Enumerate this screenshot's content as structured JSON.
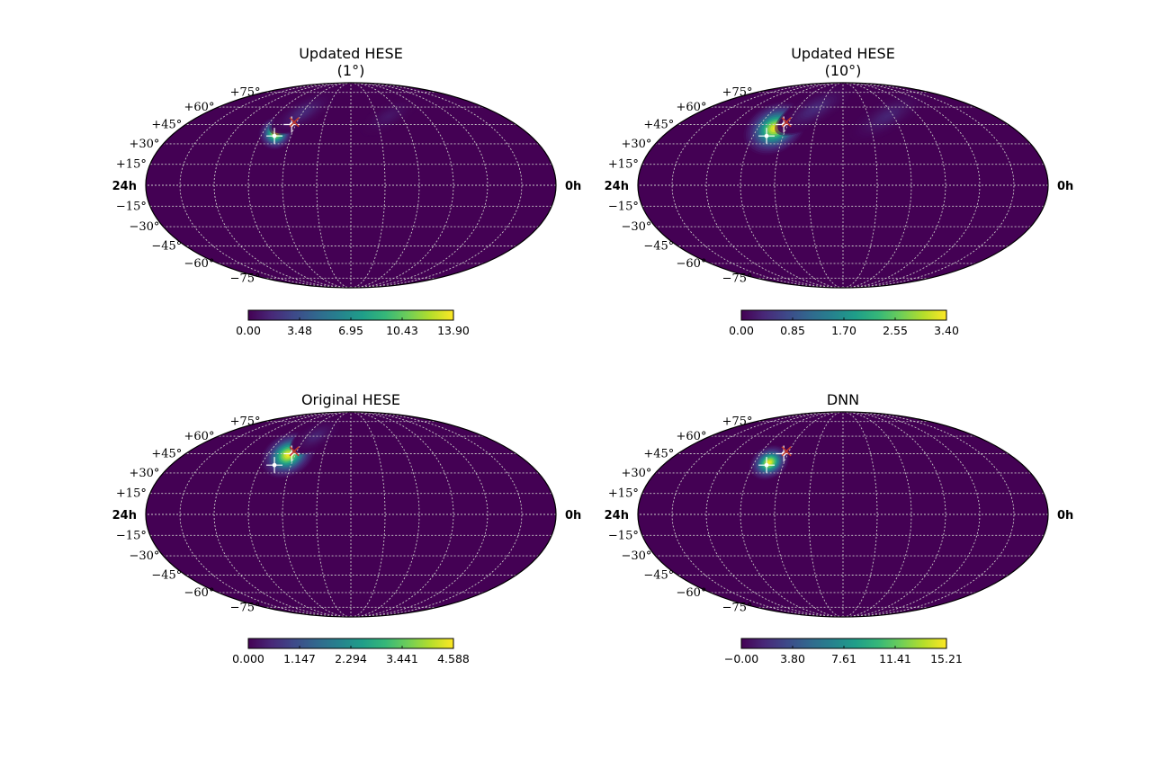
{
  "figure": {
    "colormap": "viridis",
    "background": "#ffffff",
    "grid_color": "#c8c8c8",
    "ra_labels": {
      "left": "24h",
      "right": "0h"
    },
    "lat_labels": [
      "+75°",
      "+60°",
      "+45°",
      "+30°",
      "+15°",
      "−15°",
      "−30°",
      "−45°",
      "−60°",
      "−75°"
    ]
  },
  "chart_data": [
    {
      "type": "heatmap",
      "projection": "mollweide",
      "title_lines": [
        "Updated HESE",
        "(1°)"
      ],
      "colorbar": {
        "min": 0.0,
        "max": 13.9,
        "ticks": [
          "0.00",
          "3.48",
          "6.95",
          "10.43",
          "13.90"
        ]
      },
      "blobs": [
        {
          "ra_h": 17.1,
          "dec": 38,
          "sigma_ra_h": 0.45,
          "sigma_dec": 5.0,
          "amp": 1.0
        },
        {
          "ra_h": 16.0,
          "dec": 55,
          "sigma_ra_h": 1.2,
          "sigma_dec": 5.0,
          "amp": 0.12
        },
        {
          "ra_h": 9.0,
          "dec": 52,
          "sigma_ra_h": 1.0,
          "sigma_dec": 5.0,
          "amp": 0.06
        }
      ],
      "markers": [
        {
          "ra_h": 17.1,
          "dec": 36,
          "symbol": "white-star"
        },
        {
          "ra_h": 16.3,
          "dec": 45,
          "symbol": "white-star"
        },
        {
          "ra_h": 16.2,
          "dec": 47,
          "symbol": "red-x"
        }
      ]
    },
    {
      "type": "heatmap",
      "projection": "mollweide",
      "title_lines": [
        "Updated HESE",
        "(10°)"
      ],
      "colorbar": {
        "min": 0.0,
        "max": 3.4,
        "ticks": [
          "0.00",
          "0.85",
          "1.70",
          "2.55",
          "3.40"
        ]
      },
      "blobs": [
        {
          "ra_h": 16.8,
          "dec": 42,
          "sigma_ra_h": 0.9,
          "sigma_dec": 8.0,
          "amp": 1.0
        },
        {
          "ra_h": 14.5,
          "dec": 58,
          "sigma_ra_h": 1.5,
          "sigma_dec": 6.0,
          "amp": 0.12
        },
        {
          "ra_h": 8.5,
          "dec": 52,
          "sigma_ra_h": 1.4,
          "sigma_dec": 6.0,
          "amp": 0.1
        }
      ],
      "markers": [
        {
          "ra_h": 17.1,
          "dec": 36,
          "symbol": "white-star"
        },
        {
          "ra_h": 16.3,
          "dec": 45,
          "symbol": "white-star"
        },
        {
          "ra_h": 16.2,
          "dec": 47,
          "symbol": "red-x"
        }
      ]
    },
    {
      "type": "heatmap",
      "projection": "mollweide",
      "title_lines": [
        "Original HESE"
      ],
      "colorbar": {
        "min": 0.0,
        "max": 4.588,
        "ticks": [
          "0.000",
          "1.147",
          "2.294",
          "3.441",
          "4.588"
        ]
      },
      "blobs": [
        {
          "ra_h": 16.5,
          "dec": 44,
          "sigma_ra_h": 0.8,
          "sigma_dec": 7.0,
          "amp": 1.0
        },
        {
          "ra_h": 15.2,
          "dec": 60,
          "sigma_ra_h": 1.0,
          "sigma_dec": 5.0,
          "amp": 0.1
        }
      ],
      "markers": [
        {
          "ra_h": 17.1,
          "dec": 36,
          "symbol": "white-star"
        },
        {
          "ra_h": 16.3,
          "dec": 45,
          "symbol": "white-star"
        },
        {
          "ra_h": 16.2,
          "dec": 47,
          "symbol": "red-x"
        }
      ]
    },
    {
      "type": "heatmap",
      "projection": "mollweide",
      "title_lines": [
        "DNN"
      ],
      "colorbar": {
        "min": 0.0,
        "max": 15.21,
        "ticks": [
          "−0.00",
          "3.80",
          "7.61",
          "11.41",
          "15.21"
        ]
      },
      "blobs": [
        {
          "ra_h": 17.0,
          "dec": 38,
          "sigma_ra_h": 0.55,
          "sigma_dec": 5.0,
          "amp": 1.0
        }
      ],
      "markers": [
        {
          "ra_h": 17.1,
          "dec": 36,
          "symbol": "white-star"
        },
        {
          "ra_h": 16.3,
          "dec": 45,
          "symbol": "white-star"
        },
        {
          "ra_h": 16.2,
          "dec": 47,
          "symbol": "red-x"
        }
      ]
    }
  ]
}
